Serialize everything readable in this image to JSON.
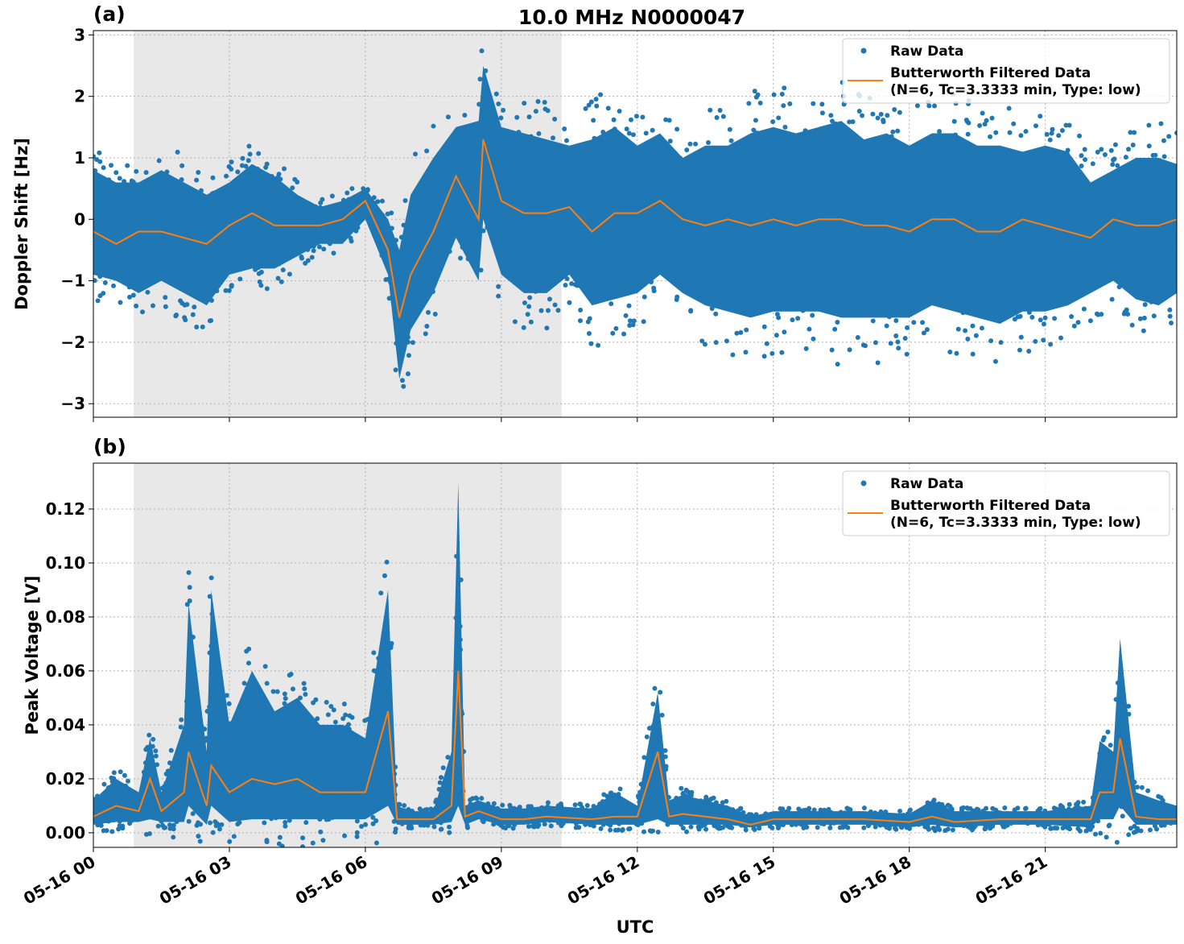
{
  "title": "10.0 MHz N0000047",
  "colors": {
    "raw": "#1f77b4",
    "filtered": "#ff7f0e",
    "shade": "#e8e8e8"
  },
  "chart_data": [
    {
      "type": "scatter",
      "panel_label": "(a)",
      "title": "10.0 MHz N0000047",
      "xlabel": "",
      "ylabel": "Doppler Shift [Hz]",
      "xlim_hours": [
        0,
        23.9
      ],
      "ylim": [
        -3.22,
        3.07
      ],
      "yticks": [
        -3,
        -2,
        -1,
        0,
        1,
        2,
        3
      ],
      "ytick_labels": [
        "−3",
        "−2",
        "−1",
        "0",
        "1",
        "2",
        "3"
      ],
      "grid": true,
      "legend_placement": "upper right",
      "shaded_interval_hours": [
        0.89,
        10.33
      ],
      "legend": [
        "Raw Data",
        "Butterworth Filtered Data",
        "(N=6, Tc=3.3333 min, Type: low)"
      ],
      "series": [
        {
          "name": "Raw Data",
          "style": "points",
          "summary": "min/max envelope per time bin",
          "x_hours": [
            0,
            0.5,
            1,
            1.5,
            2,
            2.5,
            3,
            3.5,
            4,
            4.5,
            5,
            5.5,
            6,
            6.5,
            6.75,
            7,
            7.5,
            8,
            8.5,
            8.6,
            9,
            9.5,
            10,
            10.5,
            11,
            11.5,
            12,
            12.5,
            13,
            13.5,
            14,
            14.5,
            15,
            15.5,
            16,
            16.5,
            17,
            17.5,
            18,
            18.5,
            19,
            19.5,
            20,
            20.5,
            21,
            21.5,
            22,
            22.5,
            23,
            23.5,
            23.9
          ],
          "min": [
            -0.9,
            -1.0,
            -1.2,
            -1.0,
            -1.2,
            -1.4,
            -0.9,
            -0.8,
            -0.8,
            -0.6,
            -0.4,
            -0.4,
            0.0,
            -0.9,
            -2.6,
            -1.8,
            -1.2,
            -0.3,
            -1.0,
            0.0,
            -0.9,
            -1.2,
            -1.2,
            -0.9,
            -1.4,
            -1.3,
            -1.2,
            -0.9,
            -1.2,
            -1.4,
            -1.5,
            -1.6,
            -1.5,
            -1.5,
            -1.5,
            -1.6,
            -1.6,
            -1.6,
            -1.6,
            -1.4,
            -1.5,
            -1.6,
            -1.7,
            -1.5,
            -1.5,
            -1.4,
            -1.2,
            -1.0,
            -1.3,
            -1.4,
            -1.2
          ],
          "max": [
            0.8,
            0.6,
            0.6,
            0.8,
            0.6,
            0.4,
            0.6,
            0.9,
            0.7,
            0.4,
            0.2,
            0.3,
            0.5,
            0.0,
            -0.5,
            0.4,
            1.0,
            1.5,
            1.6,
            2.5,
            1.5,
            1.4,
            1.3,
            1.2,
            1.3,
            1.5,
            1.2,
            1.4,
            1.0,
            1.2,
            1.2,
            1.4,
            1.5,
            1.4,
            1.5,
            1.6,
            1.3,
            1.4,
            1.2,
            1.4,
            1.4,
            1.2,
            1.2,
            1.1,
            1.2,
            1.1,
            0.6,
            0.8,
            1.0,
            1.0,
            0.9
          ]
        },
        {
          "name": "Butterworth Filtered Data",
          "style": "line",
          "x_hours": [
            0,
            0.5,
            1,
            1.5,
            2,
            2.5,
            3,
            3.5,
            4,
            4.5,
            5,
            5.5,
            6,
            6.5,
            6.75,
            7,
            7.5,
            8,
            8.5,
            8.6,
            9,
            9.5,
            10,
            10.5,
            11,
            11.5,
            12,
            12.5,
            13,
            13.5,
            14,
            14.5,
            15,
            15.5,
            16,
            16.5,
            17,
            17.5,
            18,
            18.5,
            19,
            19.5,
            20,
            20.5,
            21,
            21.5,
            22,
            22.5,
            23,
            23.5,
            23.9
          ],
          "values": [
            -0.2,
            -0.4,
            -0.2,
            -0.2,
            -0.3,
            -0.4,
            -0.1,
            0.1,
            -0.1,
            -0.1,
            -0.1,
            0.0,
            0.3,
            -0.5,
            -1.6,
            -0.9,
            -0.2,
            0.7,
            0.0,
            1.3,
            0.3,
            0.1,
            0.1,
            0.2,
            -0.2,
            0.1,
            0.1,
            0.3,
            0.0,
            -0.1,
            0.0,
            -0.1,
            0.0,
            -0.1,
            0.0,
            0.0,
            -0.1,
            -0.1,
            -0.2,
            0.0,
            0.0,
            -0.2,
            -0.2,
            0.0,
            -0.1,
            -0.2,
            -0.3,
            0.0,
            -0.1,
            -0.1,
            0.0
          ]
        }
      ]
    },
    {
      "type": "scatter",
      "panel_label": "(b)",
      "xlabel": "UTC",
      "ylabel": "Peak Voltage [V]",
      "xlim_hours": [
        0,
        23.9
      ],
      "ylim": [
        -0.0054,
        0.137
      ],
      "yticks": [
        0,
        0.02,
        0.04,
        0.06,
        0.08,
        0.1,
        0.12
      ],
      "ytick_labels": [
        "0.00",
        "0.02",
        "0.04",
        "0.06",
        "0.08",
        "0.10",
        "0.12"
      ],
      "xticks_hours": [
        0,
        3,
        6,
        9,
        12,
        15,
        18,
        21
      ],
      "xtick_labels": [
        "05-16 00",
        "05-16 03",
        "05-16 06",
        "05-16 09",
        "05-16 12",
        "05-16 15",
        "05-16 18",
        "05-16 21"
      ],
      "grid": true,
      "legend_placement": "upper right",
      "shaded_interval_hours": [
        0.89,
        10.33
      ],
      "legend": [
        "Raw Data",
        "Butterworth Filtered Data",
        "(N=6, Tc=3.3333 min, Type: low)"
      ],
      "series": [
        {
          "name": "Raw Data",
          "style": "points",
          "summary": "min/max envelope per time bin",
          "x_hours": [
            0,
            0.5,
            1,
            1.25,
            1.5,
            2,
            2.1,
            2.5,
            2.6,
            3,
            3.5,
            4,
            4.5,
            5,
            5.5,
            6,
            6.5,
            6.7,
            7,
            7.5,
            7.9,
            8.05,
            8.2,
            8.5,
            9,
            9.5,
            10,
            11,
            11.5,
            12,
            12.45,
            12.7,
            13,
            14,
            14.5,
            15,
            16,
            17,
            18,
            18.5,
            19,
            20,
            21,
            22,
            22.2,
            22.5,
            22.65,
            23,
            23.5,
            23.9
          ],
          "min": [
            0.003,
            0.004,
            0.004,
            0.005,
            0.004,
            0.004,
            0.01,
            0.003,
            0.01,
            0.004,
            0.005,
            0.005,
            0.005,
            0.005,
            0.005,
            0.005,
            0.01,
            0.003,
            0.003,
            0.003,
            0.004,
            0.01,
            0.003,
            0.005,
            0.003,
            0.003,
            0.004,
            0.003,
            0.003,
            0.003,
            0.005,
            0.003,
            0.003,
            0.003,
            0.002,
            0.003,
            0.003,
            0.003,
            0.002,
            0.003,
            0.002,
            0.003,
            0.003,
            0.002,
            0.005,
            0.005,
            0.01,
            0.003,
            0.003,
            0.003
          ],
          "max": [
            0.012,
            0.02,
            0.015,
            0.035,
            0.015,
            0.04,
            0.085,
            0.03,
            0.09,
            0.04,
            0.06,
            0.045,
            0.05,
            0.04,
            0.04,
            0.035,
            0.09,
            0.01,
            0.008,
            0.008,
            0.03,
            0.13,
            0.01,
            0.012,
            0.009,
            0.009,
            0.01,
            0.009,
            0.015,
            0.01,
            0.052,
            0.012,
            0.014,
            0.01,
            0.006,
            0.008,
            0.008,
            0.008,
            0.007,
            0.012,
            0.008,
            0.008,
            0.008,
            0.01,
            0.034,
            0.03,
            0.072,
            0.015,
            0.012,
            0.01
          ]
        },
        {
          "name": "Butterworth Filtered Data",
          "style": "line",
          "x_hours": [
            0,
            0.5,
            1,
            1.25,
            1.5,
            2,
            2.1,
            2.5,
            2.6,
            3,
            3.5,
            4,
            4.5,
            5,
            5.5,
            6,
            6.5,
            6.7,
            7,
            7.5,
            7.9,
            8.05,
            8.2,
            8.5,
            9,
            9.5,
            10,
            11,
            11.5,
            12,
            12.45,
            12.7,
            13,
            14,
            14.5,
            15,
            16,
            17,
            18,
            18.5,
            19,
            20,
            21,
            22,
            22.2,
            22.5,
            22.65,
            23,
            23.5,
            23.9
          ],
          "values": [
            0.006,
            0.01,
            0.008,
            0.02,
            0.008,
            0.015,
            0.03,
            0.01,
            0.025,
            0.015,
            0.02,
            0.018,
            0.02,
            0.015,
            0.015,
            0.015,
            0.045,
            0.005,
            0.005,
            0.005,
            0.01,
            0.06,
            0.006,
            0.008,
            0.005,
            0.005,
            0.006,
            0.005,
            0.006,
            0.006,
            0.03,
            0.006,
            0.007,
            0.005,
            0.003,
            0.005,
            0.005,
            0.005,
            0.004,
            0.006,
            0.004,
            0.005,
            0.005,
            0.005,
            0.015,
            0.015,
            0.035,
            0.006,
            0.005,
            0.005
          ]
        }
      ]
    }
  ]
}
